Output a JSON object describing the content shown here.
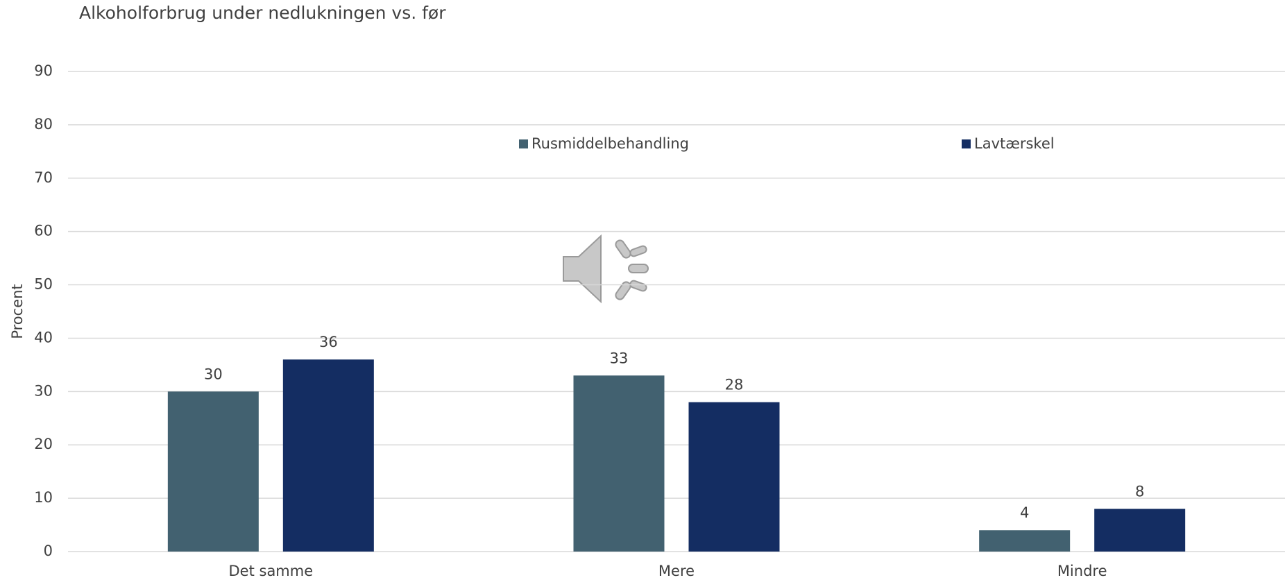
{
  "chart_data": {
    "type": "bar",
    "title": "Alkoholforbrug under nedlukningen vs. før",
    "y_label": "Procent",
    "categories": [
      "Det samme",
      "Mere",
      "Mindre"
    ],
    "series": [
      {
        "name": "Rusmiddelbehandling",
        "color": "#426170",
        "values": [
          30,
          33,
          4
        ]
      },
      {
        "name": "Lavtærskel",
        "color": "#142d62",
        "values": [
          36,
          28,
          8
        ]
      }
    ],
    "ylim": [
      0,
      90
    ],
    "yticks": [
      0,
      10,
      20,
      30,
      40,
      50,
      60,
      70,
      80,
      90
    ],
    "grid": true,
    "legend": "top"
  }
}
